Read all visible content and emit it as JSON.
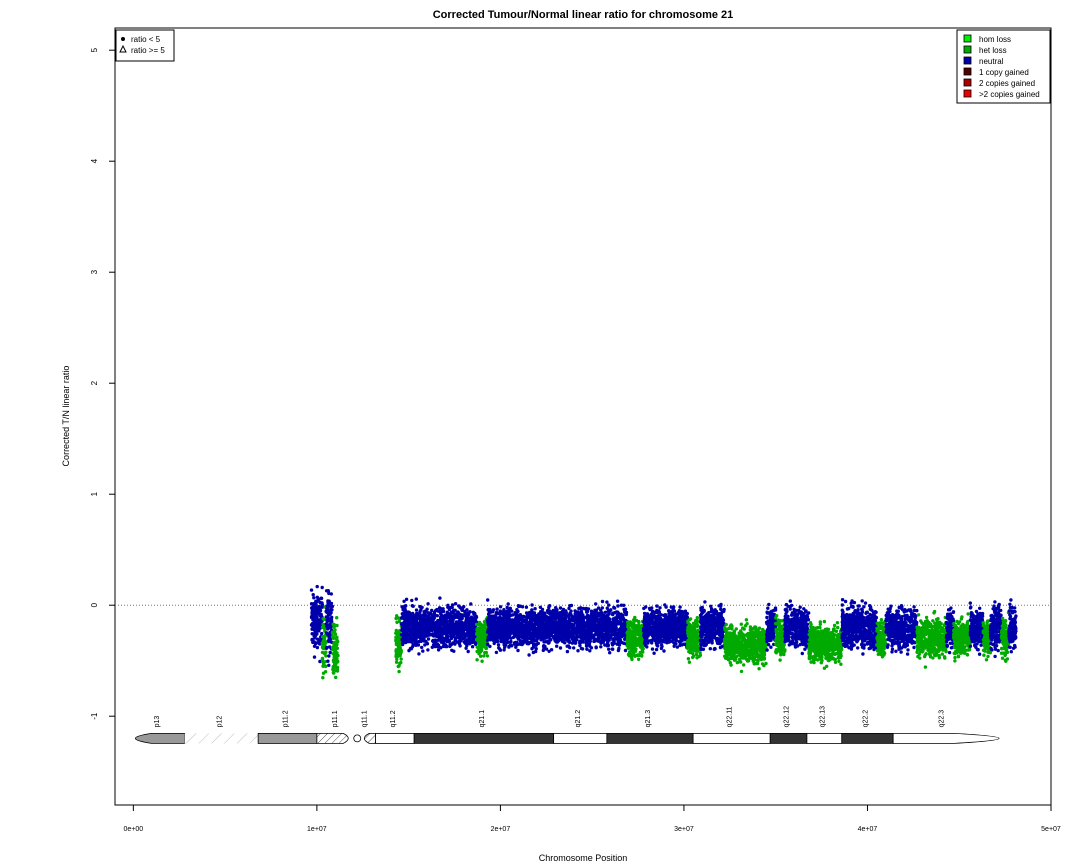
{
  "chart_data": {
    "type": "scatter",
    "title": "Corrected Tumour/Normal linear ratio for chromosome  21",
    "xlabel": "Chromosome Position",
    "ylabel": "Corrected T/N linear ratio",
    "xlim": [
      -1000000,
      50000000
    ],
    "ylim": [
      -1.8,
      5.2
    ],
    "x_ticks": [
      0,
      10000000,
      20000000,
      30000000,
      40000000,
      50000000
    ],
    "x_tick_labels": [
      "0e+00",
      "1e+07",
      "2e+07",
      "3e+07",
      "4e+07",
      "5e+07"
    ],
    "y_ticks": [
      -1,
      0,
      1,
      2,
      3,
      4,
      5
    ],
    "y_tick_labels": [
      "-1",
      "0",
      "1",
      "2",
      "3",
      "4",
      "5"
    ],
    "reference_line": 0,
    "shape_legend": {
      "position": "top-left",
      "items": [
        {
          "symbol": "dot",
          "label": "ratio < 5"
        },
        {
          "symbol": "triangle",
          "label": "ratio >= 5"
        }
      ]
    },
    "color_legend": {
      "position": "top-right",
      "items": [
        {
          "label": "hom loss",
          "color": "#00ee00"
        },
        {
          "label": "het loss",
          "color": "#00aa00"
        },
        {
          "label": "neutral",
          "color": "#0000aa"
        },
        {
          "label": "1 copy gained",
          "color": "#550000"
        },
        {
          "label": "2 copies gained",
          "color": "#aa0000"
        },
        {
          "label": ">2 copies gained",
          "color": "#ee0000"
        }
      ]
    },
    "segments": [
      {
        "start": 9700000,
        "end": 10300000,
        "state": "neutral",
        "mean": -0.15,
        "spread": 0.25
      },
      {
        "start": 10300000,
        "end": 10500000,
        "state": "het loss",
        "mean": -0.35,
        "spread": 0.25
      },
      {
        "start": 10500000,
        "end": 10850000,
        "state": "neutral",
        "mean": -0.15,
        "spread": 0.25
      },
      {
        "start": 10850000,
        "end": 11150000,
        "state": "het loss",
        "mean": -0.4,
        "spread": 0.25
      },
      {
        "start": 14300000,
        "end": 14600000,
        "state": "het loss",
        "mean": -0.35,
        "spread": 0.2
      },
      {
        "start": 14600000,
        "end": 18700000,
        "state": "neutral",
        "mean": -0.2,
        "spread": 0.16
      },
      {
        "start": 18700000,
        "end": 19300000,
        "state": "het loss",
        "mean": -0.3,
        "spread": 0.15
      },
      {
        "start": 19300000,
        "end": 26900000,
        "state": "neutral",
        "mean": -0.2,
        "spread": 0.16
      },
      {
        "start": 26900000,
        "end": 27800000,
        "state": "het loss",
        "mean": -0.3,
        "spread": 0.16
      },
      {
        "start": 27800000,
        "end": 30200000,
        "state": "neutral",
        "mean": -0.2,
        "spread": 0.16
      },
      {
        "start": 30200000,
        "end": 30900000,
        "state": "het loss",
        "mean": -0.3,
        "spread": 0.15
      },
      {
        "start": 30900000,
        "end": 32200000,
        "state": "neutral",
        "mean": -0.2,
        "spread": 0.16
      },
      {
        "start": 32200000,
        "end": 34500000,
        "state": "het loss",
        "mean": -0.35,
        "spread": 0.15
      },
      {
        "start": 34500000,
        "end": 35000000,
        "state": "neutral",
        "mean": -0.2,
        "spread": 0.16
      },
      {
        "start": 35000000,
        "end": 35500000,
        "state": "het loss",
        "mean": -0.3,
        "spread": 0.15
      },
      {
        "start": 35500000,
        "end": 36800000,
        "state": "neutral",
        "mean": -0.2,
        "spread": 0.16
      },
      {
        "start": 36800000,
        "end": 38600000,
        "state": "het loss",
        "mean": -0.35,
        "spread": 0.15
      },
      {
        "start": 38600000,
        "end": 40500000,
        "state": "neutral",
        "mean": -0.2,
        "spread": 0.16
      },
      {
        "start": 40500000,
        "end": 41000000,
        "state": "het loss",
        "mean": -0.3,
        "spread": 0.15
      },
      {
        "start": 41000000,
        "end": 42700000,
        "state": "neutral",
        "mean": -0.2,
        "spread": 0.16
      },
      {
        "start": 42700000,
        "end": 44300000,
        "state": "het loss",
        "mean": -0.3,
        "spread": 0.15
      },
      {
        "start": 44300000,
        "end": 44700000,
        "state": "neutral",
        "mean": -0.2,
        "spread": 0.16
      },
      {
        "start": 44700000,
        "end": 45600000,
        "state": "het loss",
        "mean": -0.3,
        "spread": 0.15
      },
      {
        "start": 45600000,
        "end": 46300000,
        "state": "neutral",
        "mean": -0.2,
        "spread": 0.16
      },
      {
        "start": 46300000,
        "end": 46700000,
        "state": "het loss",
        "mean": -0.3,
        "spread": 0.15
      },
      {
        "start": 46700000,
        "end": 47300000,
        "state": "neutral",
        "mean": -0.2,
        "spread": 0.16
      },
      {
        "start": 47300000,
        "end": 47700000,
        "state": "het loss",
        "mean": -0.3,
        "spread": 0.15
      },
      {
        "start": 47700000,
        "end": 48100000,
        "state": "neutral",
        "mean": -0.2,
        "spread": 0.18
      }
    ],
    "ideogram": {
      "y": -1.2,
      "centromere": 12200000,
      "bands": [
        {
          "name": "p13",
          "start": 0,
          "end": 2800000,
          "fill": "gray50"
        },
        {
          "name": "p12",
          "start": 2800000,
          "end": 6800000,
          "fill": "stalk"
        },
        {
          "name": "p11.2",
          "start": 6800000,
          "end": 10000000,
          "fill": "gray50"
        },
        {
          "name": "p11.1",
          "start": 10000000,
          "end": 12200000,
          "fill": "acen"
        },
        {
          "name": "q11.1",
          "start": 12200000,
          "end": 13200000,
          "fill": "acen"
        },
        {
          "name": "q11.2",
          "start": 13200000,
          "end": 15300000,
          "fill": "gneg"
        },
        {
          "name": "q21.1",
          "start": 15300000,
          "end": 22900000,
          "fill": "gpos100"
        },
        {
          "name": "q21.2",
          "start": 22900000,
          "end": 25800000,
          "fill": "gneg"
        },
        {
          "name": "q21.3",
          "start": 25800000,
          "end": 30500000,
          "fill": "gpos75"
        },
        {
          "name": "q22.11",
          "start": 30500000,
          "end": 34700000,
          "fill": "gneg"
        },
        {
          "name": "q22.12",
          "start": 34700000,
          "end": 36700000,
          "fill": "gpos50"
        },
        {
          "name": "q22.13",
          "start": 36700000,
          "end": 38600000,
          "fill": "gneg"
        },
        {
          "name": "q22.2",
          "start": 38600000,
          "end": 41400000,
          "fill": "gpos50"
        },
        {
          "name": "q22.3",
          "start": 41400000,
          "end": 46900000,
          "fill": "gneg"
        }
      ],
      "end": 46900000
    }
  }
}
